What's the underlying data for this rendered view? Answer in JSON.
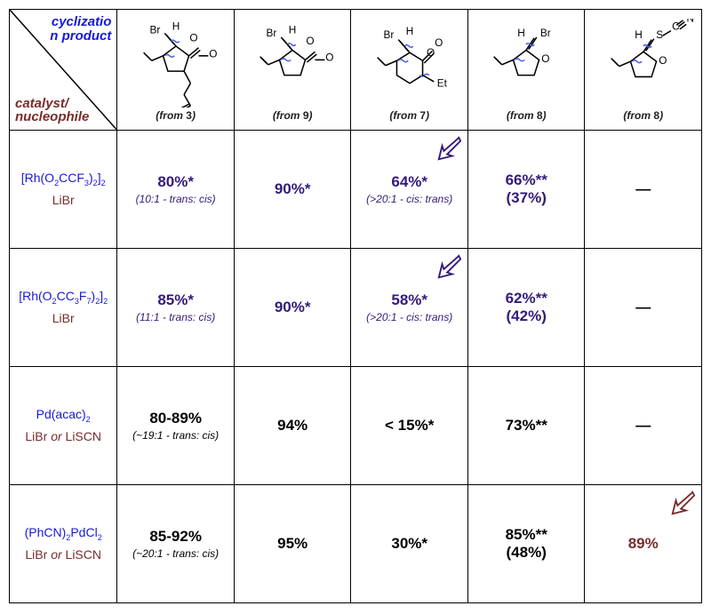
{
  "header": {
    "top_label_l1": "cyclizatio",
    "top_label_l2": "n product",
    "bot_label_l1": "catalyst/",
    "bot_label_l2": "nucleophile"
  },
  "columns": [
    {
      "from_html": "(from <b>3</b>)",
      "mol": "lactone5_tail"
    },
    {
      "from_html": "(from <b>9</b>)",
      "mol": "lactone5"
    },
    {
      "from_html": "(from <b>7</b>)",
      "mol": "lactone6"
    },
    {
      "from_html": "(from <b>8</b>)",
      "mol": "thf_br"
    },
    {
      "from_html": "(from <b>8</b>)",
      "mol": "thf_scn"
    }
  ],
  "rows": [
    {
      "catalyst_html": "[Rh(O<sub>2</sub>CCF<sub>3</sub>)<sub>2</sub>]<sub>2</sub>",
      "nuc_html": "LiBr",
      "cells": [
        {
          "val": "80%*",
          "color": "blue",
          "note": "(10:1 - trans: cis)",
          "note_color": "blue"
        },
        {
          "val": "90%*",
          "color": "blue"
        },
        {
          "val": "64%*",
          "color": "blue",
          "note": "(>20:1 - cis: trans)",
          "note_color": "blue",
          "arrow": "blue"
        },
        {
          "val": "66%**",
          "color": "blue",
          "paren": "(37%)",
          "paren_color": "blue"
        },
        {
          "val": "—",
          "color": "black"
        }
      ]
    },
    {
      "catalyst_html": "[Rh(O<sub>2</sub>CC<sub>3</sub>F<sub>7</sub>)<sub>2</sub>]<sub>2</sub>",
      "nuc_html": "LiBr",
      "cells": [
        {
          "val": "85%*",
          "color": "blue",
          "note": "(11:1 - trans: cis)",
          "note_color": "blue"
        },
        {
          "val": "90%*",
          "color": "blue"
        },
        {
          "val": "58%*",
          "color": "blue",
          "note": "(>20:1 - cis: trans)",
          "note_color": "blue",
          "arrow": "blue"
        },
        {
          "val": "62%**",
          "color": "blue",
          "paren": "(42%)",
          "paren_color": "blue"
        },
        {
          "val": "—",
          "color": "black"
        }
      ]
    },
    {
      "catalyst_html": "Pd(acac)<sub>2</sub>",
      "nuc_html": "LiBr <span class='or'>or</span> LiSCN",
      "cells": [
        {
          "val": "80-89%",
          "color": "black",
          "note": "(~19:1 - trans: cis)",
          "note_color": "black"
        },
        {
          "val": "94%",
          "color": "black"
        },
        {
          "val": "< 15%*",
          "color": "black"
        },
        {
          "val": "73%**",
          "color": "black"
        },
        {
          "val": "—",
          "color": "black"
        }
      ]
    },
    {
      "catalyst_html": "(PhCN)<sub>2</sub>PdCl<sub>2</sub>",
      "nuc_html": "LiBr <span class='or'>or</span> LiSCN",
      "cells": [
        {
          "val": "85-92%",
          "color": "black",
          "note": "(~20:1 - trans: cis)",
          "note_color": "black"
        },
        {
          "val": "95%",
          "color": "black"
        },
        {
          "val": "30%*",
          "color": "black"
        },
        {
          "val": "85%**",
          "color": "black",
          "paren": "(48%)",
          "paren_color": "black"
        },
        {
          "val": "89%",
          "color": "red",
          "arrow": "red"
        }
      ]
    }
  ],
  "style": {
    "colors": {
      "blue": "#331a7a",
      "black": "#000000",
      "red": "#7a2b2b",
      "header_blue": "#1818d8",
      "header_red": "#7a2b2b"
    }
  }
}
